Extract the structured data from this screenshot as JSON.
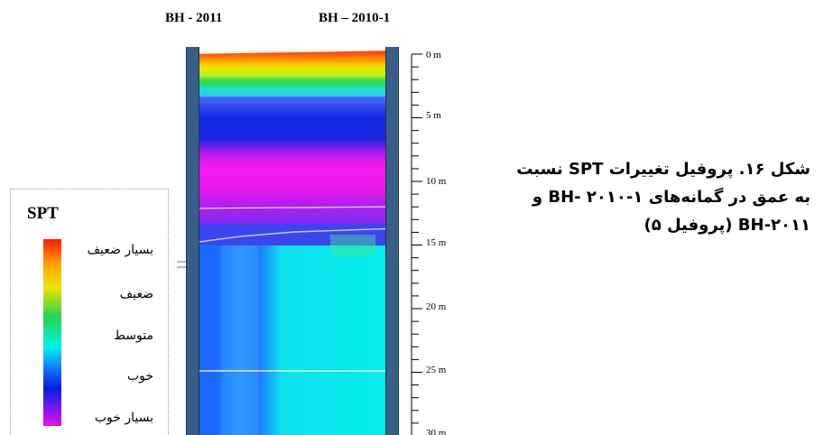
{
  "boreholes": {
    "left": "BH - 2011",
    "right": "BH – 2010-1"
  },
  "depth_axis": {
    "labels": [
      "0 m",
      "5 m",
      "10 m",
      "15 m",
      "20 m",
      "25 m",
      "30 m"
    ]
  },
  "legend": {
    "title": "SPT",
    "items": [
      "بسیار ضعیف",
      "ضعیف",
      "متوسط",
      "خوب",
      "بسیار خوب"
    ]
  },
  "caption": {
    "line1": "شکل ۱۶. پروفیل تغییرات SPT نسبت",
    "line2": "به عمق در گمانه‌های ۱-۲۰۱۰ -BH و",
    "line3": "BH-۲۰۱۱ (پروفیل ۵)"
  },
  "colors": {
    "very_weak": "#ff1a00",
    "weak": "#f0e000",
    "medium": "#2ad44a",
    "good": "#00f0e8",
    "very_good": "#e010e8",
    "casing": "#3a5f86"
  }
}
